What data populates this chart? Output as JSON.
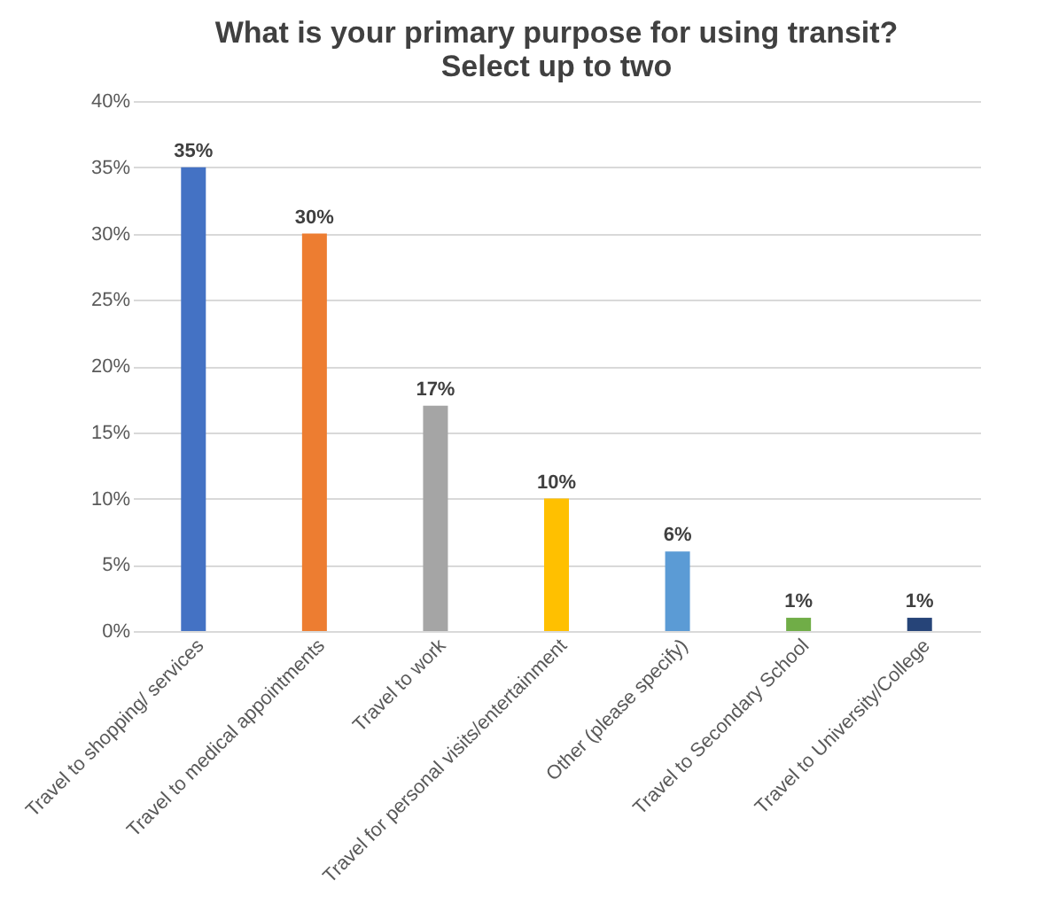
{
  "chart_data": {
    "type": "bar",
    "title": "What is your primary purpose for using transit?\nSelect up to two",
    "categories": [
      "Travel to shopping/ services",
      "Travel to medical appointments",
      "Travel to work",
      "Travel for personal visits/entertainment",
      "Other (please specify)",
      "Travel to Secondary School",
      "Travel to University/College"
    ],
    "values": [
      35,
      30,
      17,
      10,
      6,
      1,
      1
    ],
    "value_labels": [
      "35%",
      "30%",
      "17%",
      "10%",
      "6%",
      "1%",
      "1%"
    ],
    "colors": [
      "#4472c4",
      "#ed7d31",
      "#a5a5a5",
      "#ffc000",
      "#5b9bd5",
      "#70ad47",
      "#264478"
    ],
    "ylim": [
      0,
      40
    ],
    "yticks": [
      {
        "value": 0,
        "label": "0%"
      },
      {
        "value": 5,
        "label": "5%"
      },
      {
        "value": 10,
        "label": "10%"
      },
      {
        "value": 15,
        "label": "15%"
      },
      {
        "value": 20,
        "label": "20%"
      },
      {
        "value": 25,
        "label": "25%"
      },
      {
        "value": 30,
        "label": "30%"
      },
      {
        "value": 35,
        "label": "35%"
      },
      {
        "value": 40,
        "label": "40%"
      }
    ],
    "grid": "y"
  }
}
